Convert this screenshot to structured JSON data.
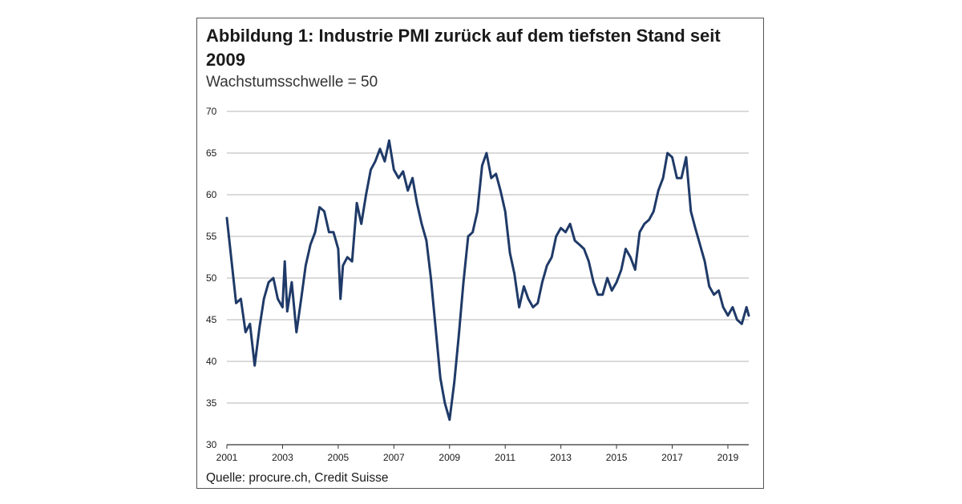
{
  "title": "Abbildung 1: Industrie PMI zurück auf dem tiefsten Stand seit 2009",
  "subtitle": "Wachstumsschwelle = 50",
  "source": "Quelle: procure.ch, Credit Suisse",
  "chart_data": {
    "type": "line",
    "title": "Abbildung 1: Industrie PMI zurück auf dem tiefsten Stand seit 2009",
    "subtitle": "Wachstumsschwelle = 50",
    "xlabel": "",
    "ylabel": "",
    "xlim": [
      2001,
      2019.75
    ],
    "ylim": [
      30,
      70
    ],
    "y_ticks": [
      30,
      35,
      40,
      45,
      50,
      55,
      60,
      65,
      70
    ],
    "x_ticks": [
      2001,
      2003,
      2005,
      2007,
      2009,
      2011,
      2013,
      2015,
      2017,
      2019
    ],
    "grid": "horizontal",
    "legend": "none",
    "line_color": "#1f3a68",
    "series": [
      {
        "points": [
          [
            2001.0,
            57.2
          ],
          [
            2001.17,
            52
          ],
          [
            2001.33,
            47
          ],
          [
            2001.5,
            47.5
          ],
          [
            2001.67,
            43.5
          ],
          [
            2001.83,
            44.5
          ],
          [
            2002.0,
            39.5
          ],
          [
            2002.17,
            44
          ],
          [
            2002.33,
            47.5
          ],
          [
            2002.5,
            49.5
          ],
          [
            2002.67,
            50
          ],
          [
            2002.83,
            47.5
          ],
          [
            2003.0,
            46.5
          ],
          [
            2003.08,
            52
          ],
          [
            2003.17,
            46
          ],
          [
            2003.33,
            49.5
          ],
          [
            2003.5,
            43.5
          ],
          [
            2003.67,
            47.5
          ],
          [
            2003.83,
            51.5
          ],
          [
            2004.0,
            54
          ],
          [
            2004.17,
            55.5
          ],
          [
            2004.33,
            58.5
          ],
          [
            2004.5,
            58
          ],
          [
            2004.67,
            55.5
          ],
          [
            2004.83,
            55.5
          ],
          [
            2005.0,
            53.5
          ],
          [
            2005.08,
            47.5
          ],
          [
            2005.17,
            51.5
          ],
          [
            2005.33,
            52.5
          ],
          [
            2005.5,
            52
          ],
          [
            2005.67,
            59
          ],
          [
            2005.83,
            56.5
          ],
          [
            2006.0,
            60
          ],
          [
            2006.17,
            63
          ],
          [
            2006.33,
            64
          ],
          [
            2006.5,
            65.5
          ],
          [
            2006.67,
            64
          ],
          [
            2006.83,
            66.5
          ],
          [
            2007.0,
            63
          ],
          [
            2007.17,
            62
          ],
          [
            2007.33,
            62.8
          ],
          [
            2007.5,
            60.5
          ],
          [
            2007.67,
            62
          ],
          [
            2007.83,
            59
          ],
          [
            2008.0,
            56.5
          ],
          [
            2008.17,
            54.5
          ],
          [
            2008.33,
            50
          ],
          [
            2008.5,
            44
          ],
          [
            2008.67,
            38
          ],
          [
            2008.83,
            35
          ],
          [
            2009.0,
            33
          ],
          [
            2009.17,
            37.5
          ],
          [
            2009.33,
            43
          ],
          [
            2009.5,
            49.5
          ],
          [
            2009.67,
            55
          ],
          [
            2009.83,
            55.5
          ],
          [
            2010.0,
            58
          ],
          [
            2010.17,
            63.5
          ],
          [
            2010.33,
            65
          ],
          [
            2010.5,
            62
          ],
          [
            2010.67,
            62.5
          ],
          [
            2010.83,
            60.5
          ],
          [
            2011.0,
            58
          ],
          [
            2011.17,
            53
          ],
          [
            2011.33,
            50.5
          ],
          [
            2011.5,
            46.5
          ],
          [
            2011.67,
            49
          ],
          [
            2011.83,
            47.5
          ],
          [
            2012.0,
            46.5
          ],
          [
            2012.17,
            47
          ],
          [
            2012.33,
            49.5
          ],
          [
            2012.5,
            51.5
          ],
          [
            2012.67,
            52.5
          ],
          [
            2012.83,
            55
          ],
          [
            2013.0,
            56
          ],
          [
            2013.17,
            55.5
          ],
          [
            2013.33,
            56.5
          ],
          [
            2013.5,
            54.5
          ],
          [
            2013.67,
            54
          ],
          [
            2013.83,
            53.5
          ],
          [
            2014.0,
            52
          ],
          [
            2014.17,
            49.5
          ],
          [
            2014.33,
            48
          ],
          [
            2014.5,
            48
          ],
          [
            2014.67,
            50
          ],
          [
            2014.83,
            48.5
          ],
          [
            2015.0,
            49.5
          ],
          [
            2015.17,
            51
          ],
          [
            2015.33,
            53.5
          ],
          [
            2015.5,
            52.5
          ],
          [
            2015.67,
            51
          ],
          [
            2015.83,
            55.5
          ],
          [
            2016.0,
            56.5
          ],
          [
            2016.17,
            57
          ],
          [
            2016.33,
            58
          ],
          [
            2016.5,
            60.5
          ],
          [
            2016.67,
            62
          ],
          [
            2016.83,
            65
          ],
          [
            2017.0,
            64.5
          ],
          [
            2017.17,
            62
          ],
          [
            2017.33,
            62
          ],
          [
            2017.5,
            64.5
          ],
          [
            2017.67,
            58
          ],
          [
            2017.83,
            56
          ],
          [
            2018.0,
            54
          ],
          [
            2018.17,
            52
          ],
          [
            2018.33,
            49
          ],
          [
            2018.5,
            48
          ],
          [
            2018.67,
            48.5
          ],
          [
            2018.83,
            46.5
          ],
          [
            2019.0,
            45.5
          ],
          [
            2019.17,
            46.5
          ],
          [
            2019.33,
            45
          ],
          [
            2019.5,
            44.5
          ],
          [
            2019.67,
            46.5
          ],
          [
            2019.75,
            45.5
          ]
        ]
      }
    ]
  }
}
